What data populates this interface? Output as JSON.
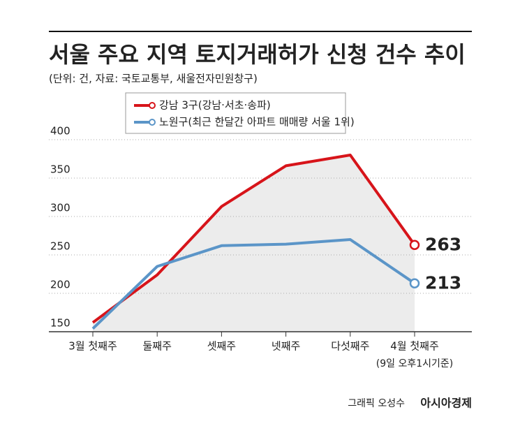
{
  "chart_data": {
    "type": "line",
    "title": "서울 주요 지역 토지거래허가 신청 건수 추이",
    "subtitle": "(단위: 건, 자료: 국토교통부, 새울전자민원창구)",
    "categories": [
      "3월 첫째주",
      "둘째주",
      "셋째주",
      "넷째주",
      "다섯째주",
      "4월 첫째주"
    ],
    "note": "(9일 오후1시기준)",
    "series": [
      {
        "name": "강남 3구(강남·서초·송파)",
        "color": "#d7141a",
        "values": [
          162,
          224,
          313,
          366,
          380,
          263
        ]
      },
      {
        "name": "노원구(최근 한달간 아파트 매매량 서울 1위)",
        "color": "#5b95c8",
        "values": [
          154,
          235,
          262,
          264,
          270,
          213
        ]
      }
    ],
    "ylim": [
      150,
      400
    ],
    "yticks": [
      150,
      200,
      250,
      300,
      350,
      400
    ],
    "grid": true,
    "credit": "그래픽 오성수",
    "publisher": "아시아경제"
  }
}
